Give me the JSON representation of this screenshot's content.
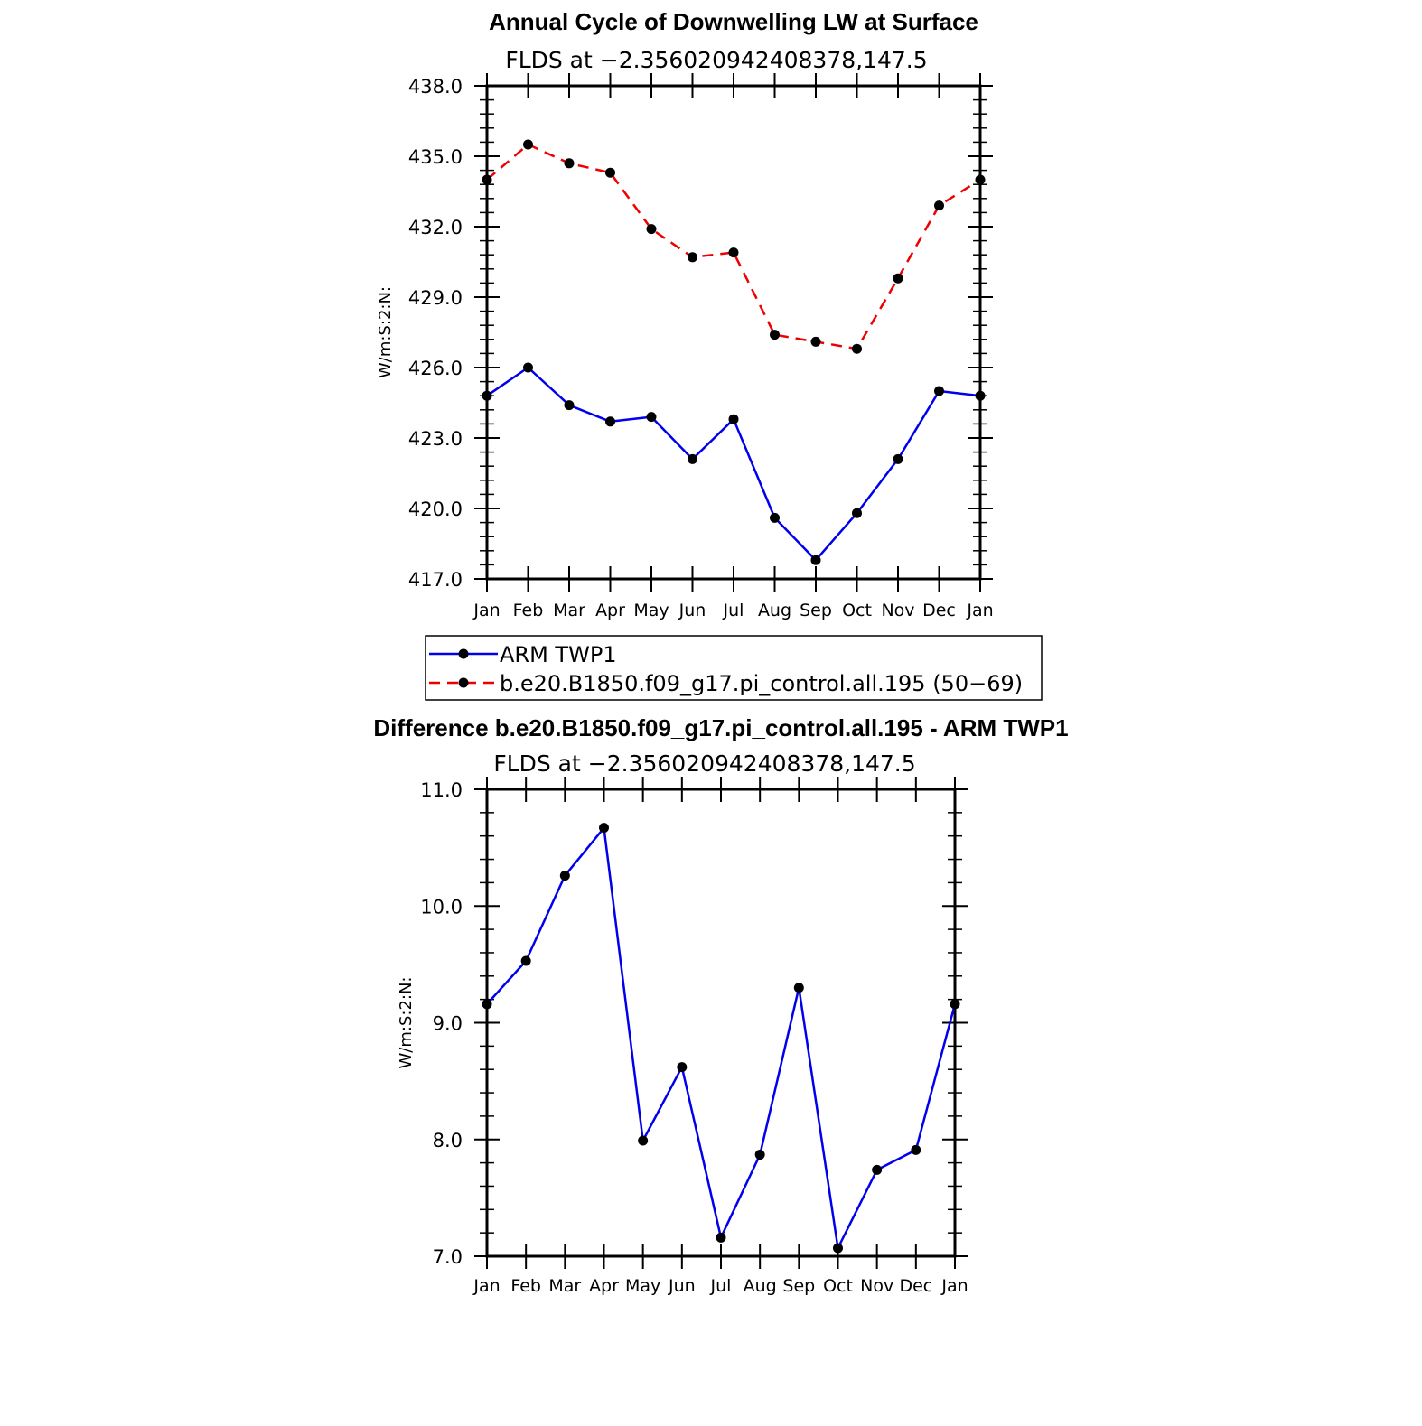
{
  "chart_data": [
    {
      "type": "line",
      "title": "Annual Cycle of Downwelling LW at Surface",
      "subtitle": "FLDS at −2.356020942408378,147.5",
      "xlabel": "",
      "ylabel": "W/m:S:2:N:",
      "categories": [
        "Jan",
        "Feb",
        "Mar",
        "Apr",
        "May",
        "Jun",
        "Jul",
        "Aug",
        "Sep",
        "Oct",
        "Nov",
        "Dec",
        "Jan"
      ],
      "ylim": [
        417.0,
        438.0
      ],
      "yticks": [
        "417.0",
        "420.0",
        "423.0",
        "426.0",
        "429.0",
        "432.0",
        "435.0",
        "438.0"
      ],
      "grid": false,
      "legend_position": "bottom",
      "series": [
        {
          "name": "ARM TWP1",
          "color": "#0000ee",
          "dash": "solid",
          "values": [
            424.8,
            426.0,
            424.4,
            423.7,
            423.9,
            422.1,
            423.8,
            419.6,
            417.8,
            419.8,
            422.1,
            425.0,
            424.8
          ]
        },
        {
          "name": "b.e20.B1850.f09_g17.pi_control.all.195 (50−69)",
          "color": "#ee0000",
          "dash": "dashed",
          "values": [
            434.0,
            435.5,
            434.7,
            434.3,
            431.9,
            430.7,
            430.9,
            427.4,
            427.1,
            426.8,
            429.8,
            432.9,
            434.0
          ]
        }
      ]
    },
    {
      "type": "line",
      "title": "Difference b.e20.B1850.f09_g17.pi_control.all.195 - ARM TWP1",
      "subtitle": "FLDS at −2.356020942408378,147.5",
      "xlabel": "",
      "ylabel": "W/m:S:2:N:",
      "categories": [
        "Jan",
        "Feb",
        "Mar",
        "Apr",
        "May",
        "Jun",
        "Jul",
        "Aug",
        "Sep",
        "Oct",
        "Nov",
        "Dec",
        "Jan"
      ],
      "ylim": [
        7.0,
        11.0
      ],
      "yticks": [
        "7.0",
        "8.0",
        "9.0",
        "10.0",
        "11.0"
      ],
      "grid": false,
      "series": [
        {
          "color": "#0000ee",
          "dash": "solid",
          "values": [
            9.16,
            9.53,
            10.26,
            10.67,
            7.99,
            8.62,
            7.16,
            7.87,
            9.3,
            7.07,
            7.74,
            7.91,
            9.16
          ]
        }
      ]
    }
  ]
}
